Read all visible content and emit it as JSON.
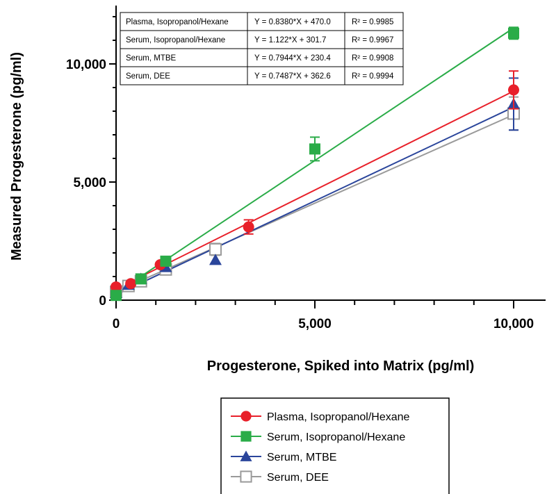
{
  "chart_data": {
    "type": "scatter",
    "title": "",
    "xlabel": "Progesterone, Spiked into Matrix (pg/ml)",
    "ylabel": "Measured Progesterone (pg/ml)",
    "xlim": [
      -200,
      10800
    ],
    "ylim": [
      -200,
      12500
    ],
    "x_ticks": [
      0,
      5000,
      10000
    ],
    "x_tick_labels": [
      "0",
      "5,000",
      "10,000"
    ],
    "y_ticks": [
      0,
      5000,
      10000
    ],
    "y_tick_labels": [
      "0",
      "5,000",
      "10,000"
    ],
    "grid": false,
    "legend_position": "bottom-center",
    "series": [
      {
        "name": "Plasma, Isopropanol/Hexane",
        "color": "#e8202a",
        "marker": "circle",
        "equation": "Y = 0.8380*X + 470.0",
        "r2": "R² = 0.9985",
        "x": [
          0,
          370,
          1111,
          3333,
          10000
        ],
        "y": [
          560,
          700,
          1500,
          3100,
          8900
        ],
        "error": [
          0,
          0,
          0,
          300,
          800
        ],
        "fit": {
          "slope": 0.838,
          "intercept": 470.0
        }
      },
      {
        "name": "Serum, Isopropanol/Hexane",
        "color": "#2aac48",
        "marker": "square",
        "equation": "Y = 1.122*X + 301.7",
        "r2": "R² = 0.9967",
        "x": [
          0,
          625,
          1250,
          5000,
          10000
        ],
        "y": [
          200,
          900,
          1650,
          6400,
          11300
        ],
        "error": [
          0,
          0,
          0,
          500,
          250
        ],
        "fit": {
          "slope": 1.122,
          "intercept": 301.7
        }
      },
      {
        "name": "Serum, MTBE",
        "color": "#2a459b",
        "marker": "triangle",
        "equation": "Y = 0.7944*X + 230.4",
        "r2": "R² = 0.9908",
        "x": [
          0,
          312,
          625,
          1250,
          2500,
          10000
        ],
        "y": [
          300,
          650,
          900,
          1400,
          1700,
          8300
        ],
        "error": [
          0,
          0,
          0,
          0,
          0,
          1100
        ],
        "fit": {
          "slope": 0.7944,
          "intercept": 230.4
        }
      },
      {
        "name": "Serum, DEE",
        "color": "#9a9a9a",
        "marker": "open-square",
        "equation": "Y = 0.7487*X + 362.6",
        "r2": "R² = 0.9994",
        "x": [
          0,
          312,
          625,
          1250,
          2500,
          10000
        ],
        "y": [
          350,
          600,
          800,
          1300,
          2150,
          7900
        ],
        "error": [
          0,
          0,
          0,
          0,
          250,
          700
        ],
        "fit": {
          "slope": 0.7487,
          "intercept": 362.6
        }
      }
    ]
  }
}
